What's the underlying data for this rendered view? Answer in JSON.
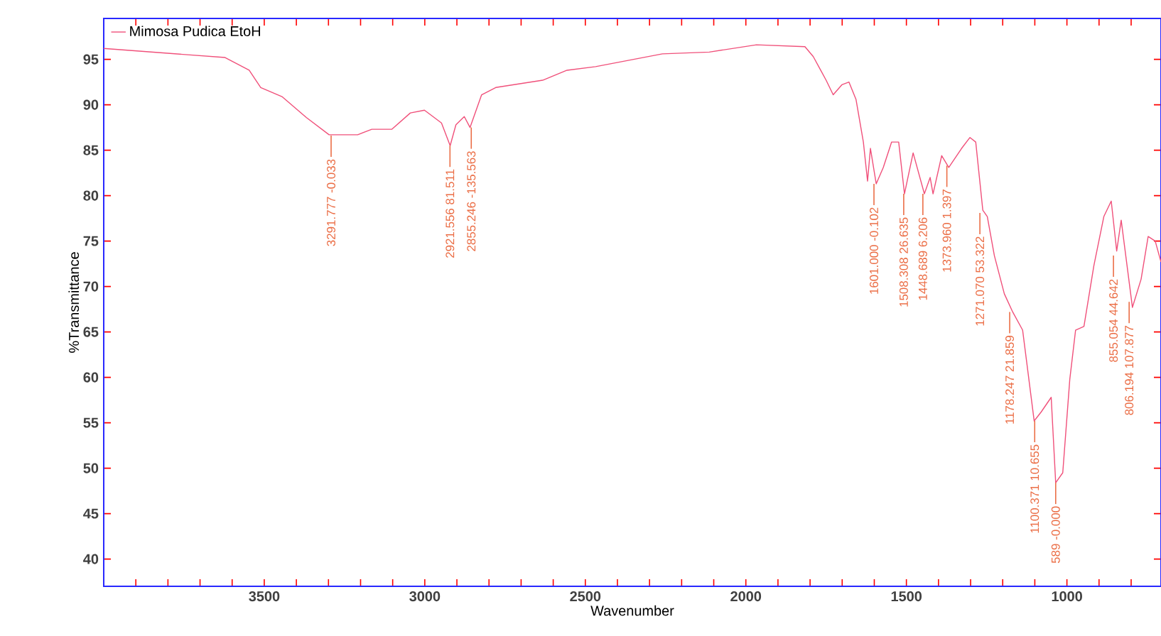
{
  "chart_data": {
    "type": "line",
    "xlabel": "Wavenumber",
    "ylabel": "%Transmittance",
    "x": [
      4000,
      3622,
      3547,
      3511,
      3445,
      3369,
      3298,
      3209,
      3165,
      3103,
      3045,
      3001,
      2948,
      2921,
      2903,
      2877,
      2859,
      2823,
      2779,
      2633,
      2557,
      2468,
      2260,
      2114,
      1967,
      1816,
      1790,
      1767,
      1750,
      1728,
      1701,
      1679,
      1657,
      1634,
      1621,
      1612,
      1594,
      1572,
      1546,
      1524,
      1506,
      1479,
      1444,
      1426,
      1417,
      1390,
      1368,
      1328,
      1302,
      1284,
      1262,
      1248,
      1226,
      1195,
      1169,
      1138,
      1102,
      1080,
      1049,
      1035,
      1013,
      991,
      973,
      947,
      916,
      885,
      862,
      845,
      831,
      796,
      769,
      747,
      725,
      707
    ],
    "series": [
      {
        "name": "Mimosa Pudica EtoH",
        "color": "#f0507a",
        "values": [
          96.2,
          95.2,
          93.8,
          91.9,
          90.9,
          88.6,
          86.7,
          86.7,
          87.3,
          87.3,
          89.1,
          89.4,
          88,
          85.5,
          87.8,
          88.7,
          87.5,
          91.1,
          91.9,
          92.7,
          93.8,
          94.2,
          95.6,
          95.8,
          96.6,
          96.4,
          95.3,
          93.8,
          92.7,
          91.1,
          92.2,
          92.5,
          90.6,
          85.9,
          81.6,
          85.2,
          81.3,
          83.1,
          85.9,
          85.9,
          80.2,
          84.7,
          80.2,
          82,
          80.2,
          84.4,
          83.1,
          85.2,
          86.4,
          85.9,
          78.4,
          77.7,
          73.4,
          69.2,
          67.2,
          65.2,
          55.2,
          56.2,
          57.8,
          48.4,
          49.5,
          59.8,
          65.2,
          65.6,
          72.3,
          77.7,
          79.4,
          73.9,
          77.3,
          67.7,
          70.8,
          75.5,
          75,
          72.7
        ]
      }
    ],
    "xlim": [
      4000,
      707
    ],
    "ylim": [
      37,
      99.5
    ],
    "xticks": [
      {
        "value": 4000,
        "label": null
      },
      {
        "value": 3900,
        "label": null
      },
      {
        "value": 3800,
        "label": null
      },
      {
        "value": 3700,
        "label": null
      },
      {
        "value": 3600,
        "label": null
      },
      3500,
      {
        "value": 3400,
        "label": null
      },
      {
        "value": 3300,
        "label": null
      },
      {
        "value": 3200,
        "label": null
      },
      {
        "value": 3100,
        "label": null
      },
      3000,
      {
        "value": 2900,
        "label": null
      },
      {
        "value": 2800,
        "label": null
      },
      {
        "value": 2700,
        "label": null
      },
      {
        "value": 2600,
        "label": null
      },
      2500,
      {
        "value": 2400,
        "label": null
      },
      {
        "value": 2300,
        "label": null
      },
      {
        "value": 2200,
        "label": null
      },
      {
        "value": 2100,
        "label": null
      },
      2000,
      {
        "value": 1900,
        "label": null
      },
      {
        "value": 1800,
        "label": null
      },
      {
        "value": 1700,
        "label": null
      },
      {
        "value": 1600,
        "label": null
      },
      1500,
      {
        "value": 1400,
        "label": null
      },
      {
        "value": 1300,
        "label": null
      },
      {
        "value": 1200,
        "label": null
      },
      {
        "value": 1100,
        "label": null
      },
      1000,
      {
        "value": 900,
        "label": null
      },
      {
        "value": 800,
        "label": null
      }
    ],
    "yticks": [
      40,
      45,
      50,
      55,
      60,
      65,
      70,
      75,
      80,
      85,
      90,
      95
    ],
    "legend": "top left",
    "annotations": [
      {
        "text": "3291.777 -0.033",
        "x": 3291.777,
        "y": 86.6
      },
      {
        "text": "2921.556 81.511",
        "x": 2921.556,
        "y": 85.5
      },
      {
        "text": "2855.246 -135.563",
        "x": 2855.246,
        "y": 87.5
      },
      {
        "text": "1601.000 -0.102",
        "x": 1601.0,
        "y": 81.3
      },
      {
        "text": "1508.308 26.635",
        "x": 1508.308,
        "y": 80.2
      },
      {
        "text": "1448.689 6.206",
        "x": 1448.689,
        "y": 80.2
      },
      {
        "text": "1373.960 1.397",
        "x": 1373.96,
        "y": 83.3
      },
      {
        "text": "1271.070 53.322",
        "x": 1271.07,
        "y": 78.1
      },
      {
        "text": "1178.247 21.859",
        "x": 1178.247,
        "y": 67.2
      },
      {
        "text": "1100.371 10.655",
        "x": 1100.371,
        "y": 55.2
      },
      {
        "text": "589 -0.000",
        "x": 1035,
        "y": 48.4
      },
      {
        "text": "855.054 44.642",
        "x": 855.054,
        "y": 73.4
      },
      {
        "text": "806.194 107.877",
        "x": 806.194,
        "y": 68.3
      }
    ]
  }
}
